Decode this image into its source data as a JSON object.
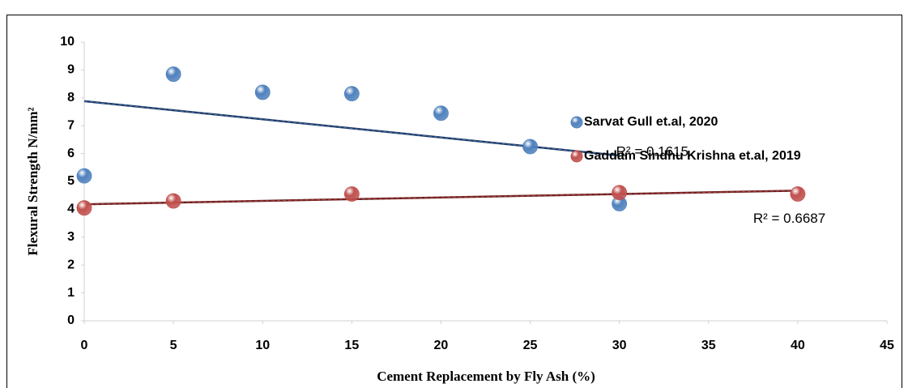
{
  "chart_data": {
    "type": "scatter",
    "x_label": "Cement Replacement by Fly Ash (%)",
    "y_label": "Flexural Strength N/mm²",
    "xlim": [
      0,
      45
    ],
    "xticks": [
      0,
      5,
      10,
      15,
      20,
      25,
      30,
      35,
      40,
      45
    ],
    "ylim": [
      0,
      10
    ],
    "yticks": [
      0,
      1,
      2,
      3,
      4,
      5,
      6,
      7,
      8,
      9,
      10
    ],
    "grid": false,
    "legend": "right",
    "series": [
      {
        "name": "Sarvat Gull et.al, 2020",
        "color": "#4f81bd",
        "x": [
          0,
          5,
          10,
          15,
          20,
          25,
          30
        ],
        "values": [
          5.2,
          8.85,
          8.2,
          8.15,
          7.45,
          6.25,
          4.2
        ],
        "trendline": {
          "color": "#1f3864",
          "x": [
            0,
            30
          ],
          "values": [
            7.88,
            5.93
          ],
          "label": "R² = 0.1615"
        }
      },
      {
        "name": "Gaddam Sindhu Krishna et.al, 2019",
        "color": "#c0504d",
        "x": [
          0,
          5,
          15,
          30,
          40
        ],
        "values": [
          4.05,
          4.3,
          4.55,
          4.6,
          4.55
        ],
        "trendline": {
          "color": "#6b1f1f",
          "x": [
            0,
            40
          ],
          "values": [
            4.18,
            4.67
          ],
          "label": "R² = 0.6687"
        }
      }
    ]
  }
}
